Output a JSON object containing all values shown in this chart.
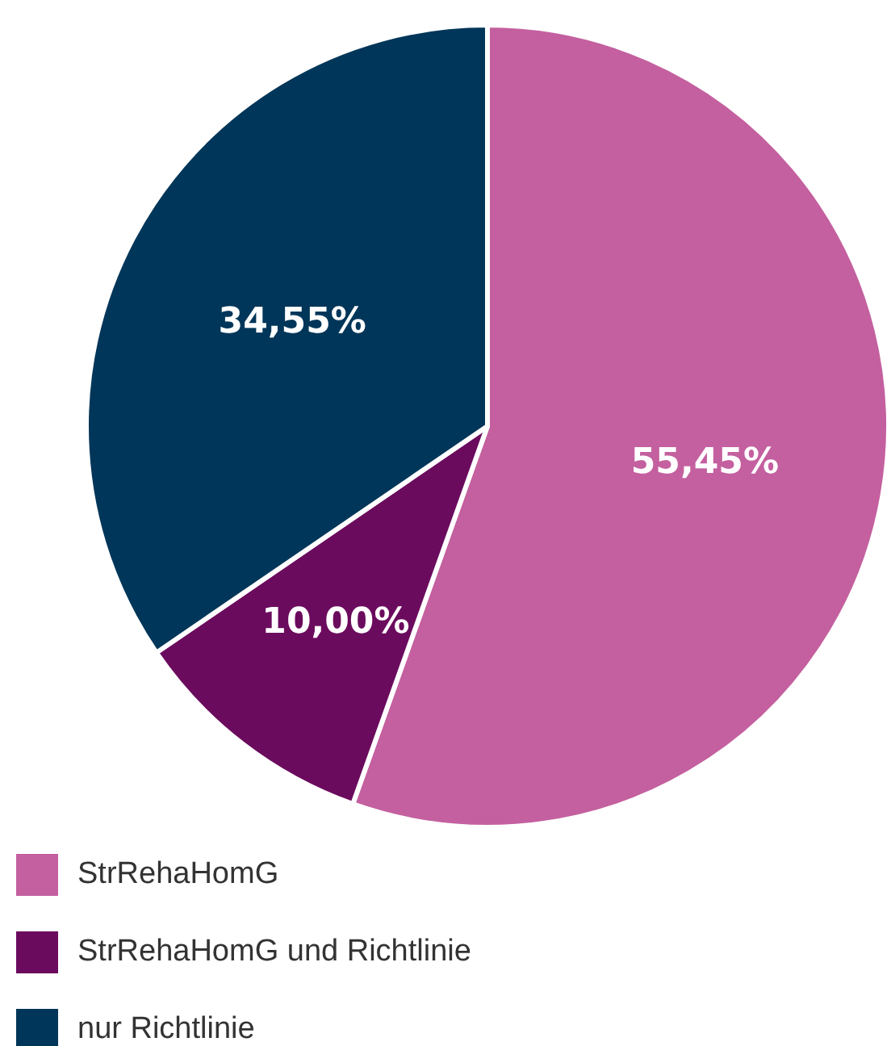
{
  "chart_data": {
    "type": "pie",
    "categories": [
      "StrRehaHomG",
      "StrRehaHomG und Richtlinie",
      "nur Richtlinie"
    ],
    "values": [
      55.45,
      10.0,
      34.55
    ],
    "colors": [
      "#c4609f",
      "#6b0b5e",
      "#003659"
    ],
    "value_labels": [
      "55,45%",
      "10,00%",
      "34,55%"
    ],
    "legend": "bottom left"
  }
}
